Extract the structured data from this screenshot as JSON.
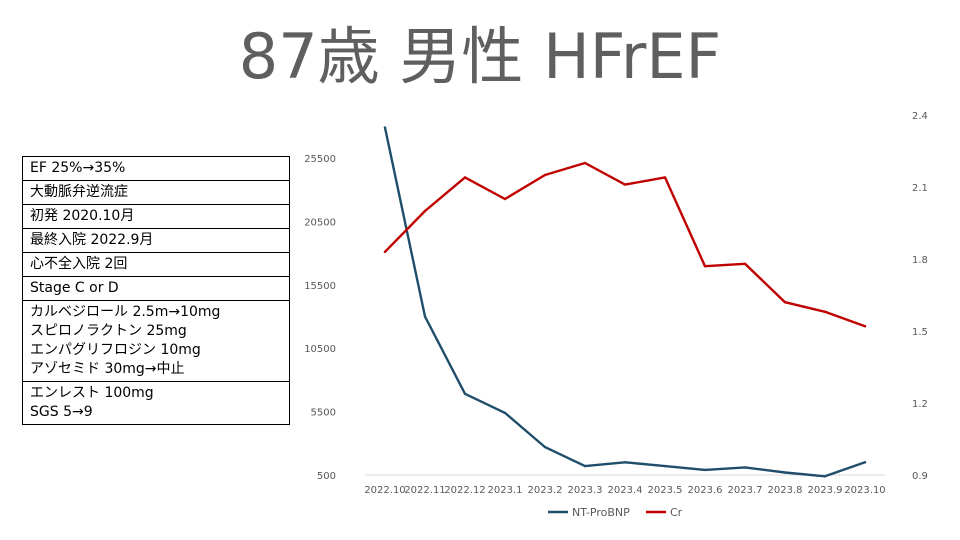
{
  "title": "87歳 男性 HFrEF",
  "info_rows": [
    [
      "EF 25%→35%"
    ],
    [
      "大動脈弁逆流症"
    ],
    [
      "初発 2020.10月"
    ],
    [
      "最終入院 2022.9月"
    ],
    [
      "心不全入院 2回"
    ],
    [
      "Stage C or D"
    ],
    [
      "カルベジロール 2.5m→10mg",
      "スピロノラクトン 25mg",
      "エンパグリフロジン 10mg",
      "アゾセミド 30mg→中止"
    ],
    [
      "エンレスト 100mg",
      "SGS 5→9"
    ]
  ],
  "chart_data": {
    "type": "line",
    "categories": [
      "2022.10",
      "2022.11",
      "2022.12",
      "2023.1",
      "2023.2",
      "2023.3",
      "2023.4",
      "2023.5",
      "2023.6",
      "2023.7",
      "2023.8",
      "2023.9",
      "2023.10"
    ],
    "y_left": {
      "ticks": [
        "500",
        "5500",
        "10500",
        "15500",
        "20500",
        "25500"
      ],
      "range": [
        500,
        25500
      ]
    },
    "y_right": {
      "ticks": [
        "0.9",
        "1.2",
        "1.5",
        "1.8",
        "2.1",
        "2.4"
      ],
      "range": [
        0.9,
        2.4
      ]
    },
    "series": [
      {
        "name": "NT-ProBNP",
        "axis": "left",
        "color": "#1f4e6b",
        "values": [
          27900,
          13000,
          6900,
          5400,
          2700,
          1200,
          1500,
          1200,
          900,
          1100,
          700,
          400,
          1500
        ]
      },
      {
        "name": "Cr",
        "axis": "right",
        "color": "#c00000",
        "values": [
          1.83,
          2.0,
          2.14,
          2.05,
          2.15,
          2.2,
          2.11,
          2.14,
          1.77,
          1.78,
          1.62,
          1.58,
          1.52
        ]
      }
    ],
    "legend_position": "bottom",
    "grid": false
  }
}
